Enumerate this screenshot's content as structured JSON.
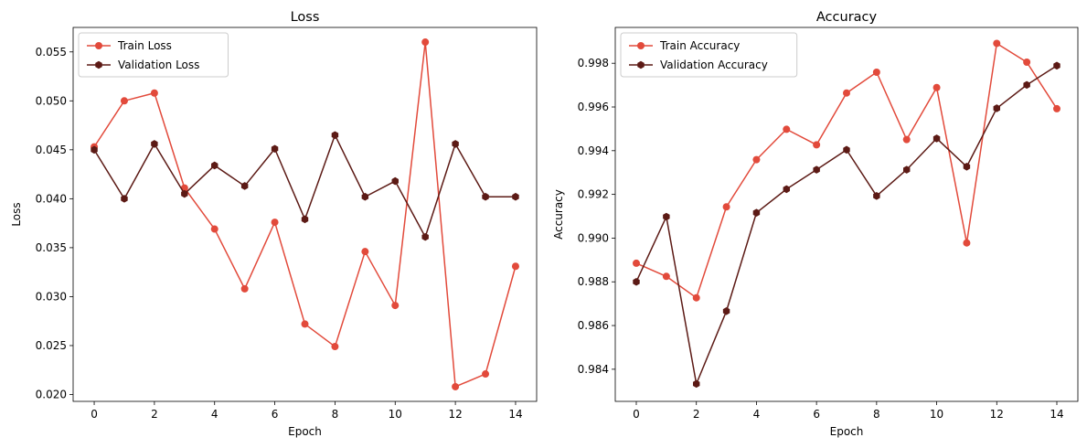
{
  "colors": {
    "train": "#e24a3b",
    "validation": "#5c1a15"
  },
  "chart_data": [
    {
      "type": "line",
      "title": "Loss",
      "xlabel": "Epoch",
      "ylabel": "Loss",
      "x": [
        0,
        1,
        2,
        3,
        4,
        5,
        6,
        7,
        8,
        9,
        10,
        11,
        12,
        13,
        14
      ],
      "xlim": [
        -0.7,
        14.7
      ],
      "ylim": [
        0.0193,
        0.0575
      ],
      "xticks": [
        0,
        2,
        4,
        6,
        8,
        10,
        12,
        14
      ],
      "yticks": [
        0.02,
        0.025,
        0.03,
        0.035,
        0.04,
        0.045,
        0.05,
        0.055
      ],
      "ytick_labels": [
        "0.020",
        "0.025",
        "0.030",
        "0.035",
        "0.040",
        "0.045",
        "0.050",
        "0.055"
      ],
      "legend": "top-left",
      "grid": false,
      "series": [
        {
          "name": "Train Loss",
          "color": "#e24a3b",
          "marker": "circle",
          "values": [
            0.0453,
            0.05,
            0.0508,
            0.0411,
            0.0369,
            0.0308,
            0.0376,
            0.0272,
            0.0249,
            0.0346,
            0.0291,
            0.056,
            0.0208,
            0.0221,
            0.0331
          ]
        },
        {
          "name": "Validation Loss",
          "color": "#5c1a15",
          "marker": "hexagon",
          "values": [
            0.045,
            0.04,
            0.0456,
            0.0405,
            0.0434,
            0.0413,
            0.0451,
            0.0379,
            0.0465,
            0.0402,
            0.0418,
            0.0361,
            0.0456,
            0.0402,
            0.0402
          ]
        }
      ]
    },
    {
      "type": "line",
      "title": "Accuracy",
      "xlabel": "Epoch",
      "ylabel": "Accuracy",
      "x": [
        0,
        1,
        2,
        3,
        4,
        5,
        6,
        7,
        8,
        9,
        10,
        11,
        12,
        13,
        14
      ],
      "xlim": [
        -0.7,
        14.7
      ],
      "ylim": [
        0.98253,
        0.99964
      ],
      "xticks": [
        0,
        2,
        4,
        6,
        8,
        10,
        12,
        14
      ],
      "yticks": [
        0.984,
        0.986,
        0.988,
        0.99,
        0.992,
        0.994,
        0.996,
        0.998
      ],
      "ytick_labels": [
        "0.984",
        "0.986",
        "0.988",
        "0.990",
        "0.992",
        "0.994",
        "0.996",
        "0.998"
      ],
      "legend": "top-left",
      "grid": false,
      "series": [
        {
          "name": "Train Accuracy",
          "color": "#e24a3b",
          "marker": "circle",
          "values": [
            0.98885,
            0.98825,
            0.98727,
            0.99143,
            0.99359,
            0.99498,
            0.99427,
            0.99664,
            0.99759,
            0.99451,
            0.99689,
            0.98978,
            0.99891,
            0.99805,
            0.99592
          ]
        },
        {
          "name": "Validation Accuracy",
          "color": "#5c1a15",
          "marker": "hexagon",
          "values": [
            0.988,
            0.99098,
            0.98333,
            0.98666,
            0.99116,
            0.99224,
            0.99313,
            0.99404,
            0.99193,
            0.99313,
            0.99456,
            0.99327,
            0.99594,
            0.99701,
            0.99789
          ]
        }
      ]
    }
  ]
}
